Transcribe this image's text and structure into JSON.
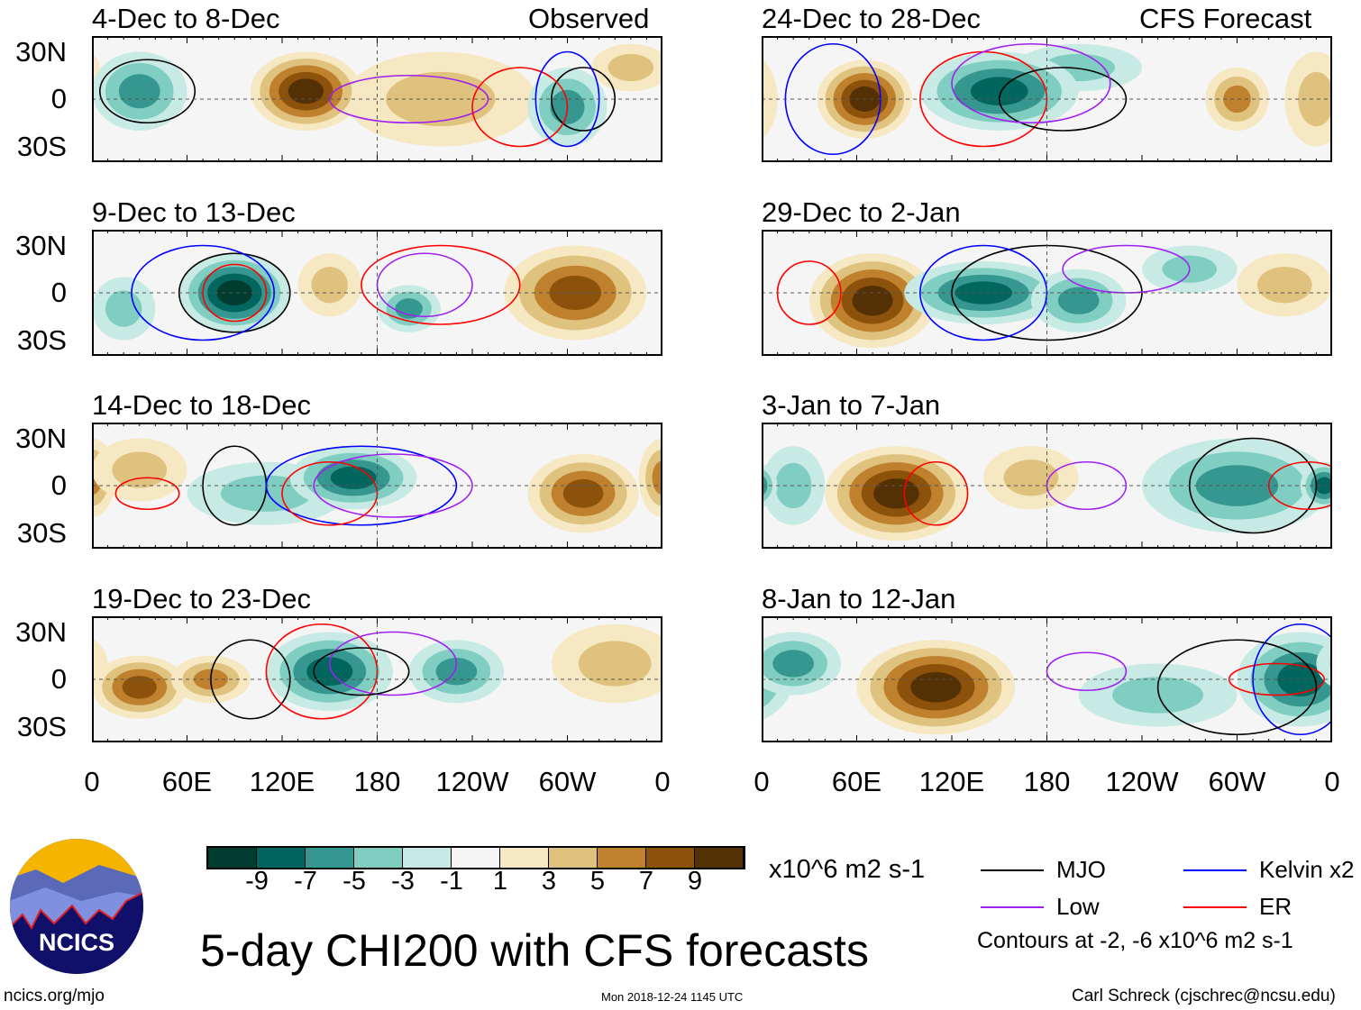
{
  "title": "5-day CHI200 with CFS forecasts",
  "units": "x10^6 m2 s-1",
  "observed_label": "Observed",
  "forecast_label": "CFS Forecast",
  "footer": {
    "left": "ncics.org/mjo",
    "center": "Mon 2018-12-24 1145 UTC",
    "right": "Carl Schreck (cjschrec@ncsu.edu)"
  },
  "logo_text": "NCICS",
  "contour_note": "Contours at -2, -6 x10^6 m2 s-1",
  "legend": [
    {
      "label": "MJO",
      "color": "#000000"
    },
    {
      "label": "Kelvin x2",
      "color": "#0000ff"
    },
    {
      "label": "Low",
      "color": "#a020f0"
    },
    {
      "label": "ER",
      "color": "#ff0000"
    }
  ],
  "colorbar": {
    "colors": [
      "#003c30",
      "#01665e",
      "#35978f",
      "#80cdc1",
      "#c7eae5",
      "#f5f5f5",
      "#f6e8c3",
      "#dfc27d",
      "#bf812d",
      "#8c510a",
      "#543005"
    ],
    "labels": [
      "-9",
      "-7",
      "-5",
      "-3",
      "-1",
      "1",
      "3",
      "5",
      "7",
      "9"
    ]
  },
  "lat_labels": [
    "30N",
    "0",
    "30S"
  ],
  "lon_labels": [
    "0",
    "60E",
    "120E",
    "180",
    "120W",
    "60W",
    "0"
  ],
  "chart_data": {
    "type": "heatmap",
    "lon_range": [
      0,
      360
    ],
    "lat_range": [
      -40,
      40
    ],
    "panels": [
      {
        "title": "4-Dec to 8-Dec",
        "anomalies": [
          {
            "lon": 220,
            "lat": 0,
            "rx": 60,
            "ry": 30,
            "v": 3
          },
          {
            "lon": 340,
            "lat": 20,
            "rx": 25,
            "ry": 15,
            "v": 3
          },
          {
            "lon": 135,
            "lat": 5,
            "rx": 35,
            "ry": 25,
            "v": 9
          },
          {
            "lon": 30,
            "lat": 5,
            "rx": 30,
            "ry": 25,
            "v": -5
          },
          {
            "lon": 300,
            "lat": -5,
            "rx": 25,
            "ry": 25,
            "v": -5
          }
        ],
        "contours": [
          {
            "t": "MJO",
            "lon": 35,
            "lat": 5,
            "rx": 30,
            "ry": 20
          },
          {
            "t": "MJO",
            "lon": 310,
            "lat": 0,
            "rx": 20,
            "ry": 20
          },
          {
            "t": "Low",
            "lon": 200,
            "lat": 0,
            "rx": 50,
            "ry": 15
          },
          {
            "t": "ER",
            "lon": 270,
            "lat": -5,
            "rx": 30,
            "ry": 25
          },
          {
            "t": "Kelvin",
            "lon": 300,
            "lat": 0,
            "rx": 20,
            "ry": 30
          }
        ]
      },
      {
        "title": "9-Dec to 13-Dec",
        "anomalies": [
          {
            "lon": 305,
            "lat": 0,
            "rx": 45,
            "ry": 30,
            "v": 7
          },
          {
            "lon": 150,
            "lat": 5,
            "rx": 20,
            "ry": 20,
            "v": 3
          },
          {
            "lon": 90,
            "lat": 0,
            "rx": 35,
            "ry": 25,
            "v": -9
          },
          {
            "lon": 200,
            "lat": -10,
            "rx": 20,
            "ry": 15,
            "v": -5
          },
          {
            "lon": 20,
            "lat": -10,
            "rx": 20,
            "ry": 20,
            "v": -3
          }
        ],
        "contours": [
          {
            "t": "MJO",
            "lon": 90,
            "lat": 0,
            "rx": 35,
            "ry": 25
          },
          {
            "t": "ER",
            "lon": 90,
            "lat": 0,
            "rx": 20,
            "ry": 18
          },
          {
            "t": "Kelvin",
            "lon": 70,
            "lat": 0,
            "rx": 45,
            "ry": 30
          },
          {
            "t": "Low",
            "lon": 210,
            "lat": 5,
            "rx": 30,
            "ry": 20
          },
          {
            "t": "ER",
            "lon": 220,
            "lat": 5,
            "rx": 50,
            "ry": 25
          }
        ]
      },
      {
        "title": "14-Dec to 18-Dec",
        "anomalies": [
          {
            "lon": 310,
            "lat": -5,
            "rx": 35,
            "ry": 25,
            "v": 7
          },
          {
            "lon": 0,
            "lat": 5,
            "rx": 15,
            "ry": 25,
            "v": 5
          },
          {
            "lon": 30,
            "lat": 10,
            "rx": 30,
            "ry": 20,
            "v": 3
          },
          {
            "lon": 110,
            "lat": -5,
            "rx": 50,
            "ry": 20,
            "v": -3
          },
          {
            "lon": 165,
            "lat": 5,
            "rx": 40,
            "ry": 20,
            "v": -7
          }
        ],
        "contours": [
          {
            "t": "MJO",
            "lon": 90,
            "lat": 0,
            "rx": 20,
            "ry": 25
          },
          {
            "t": "Kelvin",
            "lon": 170,
            "lat": 0,
            "rx": 60,
            "ry": 25
          },
          {
            "t": "Low",
            "lon": 190,
            "lat": 0,
            "rx": 50,
            "ry": 20
          },
          {
            "t": "ER",
            "lon": 35,
            "lat": -5,
            "rx": 20,
            "ry": 10
          },
          {
            "t": "ER",
            "lon": 150,
            "lat": -5,
            "rx": 30,
            "ry": 20
          }
        ]
      },
      {
        "title": "19-Dec to 23-Dec",
        "anomalies": [
          {
            "lon": 330,
            "lat": 10,
            "rx": 40,
            "ry": 25,
            "v": 3
          },
          {
            "lon": 30,
            "lat": -5,
            "rx": 30,
            "ry": 20,
            "v": 7
          },
          {
            "lon": 75,
            "lat": 0,
            "rx": 25,
            "ry": 15,
            "v": 5
          },
          {
            "lon": 150,
            "lat": 5,
            "rx": 40,
            "ry": 25,
            "v": -7
          },
          {
            "lon": 230,
            "lat": 5,
            "rx": 30,
            "ry": 20,
            "v": -5
          }
        ],
        "contours": [
          {
            "t": "MJO",
            "lon": 100,
            "lat": 0,
            "rx": 25,
            "ry": 25
          },
          {
            "t": "ER",
            "lon": 145,
            "lat": 5,
            "rx": 35,
            "ry": 30
          },
          {
            "t": "Low",
            "lon": 190,
            "lat": 10,
            "rx": 40,
            "ry": 20
          },
          {
            "t": "MJO",
            "lon": 170,
            "lat": 5,
            "rx": 30,
            "ry": 15
          }
        ]
      },
      {
        "title": "24-Dec to 28-Dec",
        "anomalies": [
          {
            "lon": 350,
            "lat": 0,
            "rx": 20,
            "ry": 30,
            "v": 3
          },
          {
            "lon": 65,
            "lat": 0,
            "rx": 30,
            "ry": 25,
            "v": 9
          },
          {
            "lon": 200,
            "lat": 20,
            "rx": 40,
            "ry": 15,
            "v": -3
          },
          {
            "lon": 150,
            "lat": 5,
            "rx": 50,
            "ry": 25,
            "v": -7
          },
          {
            "lon": 300,
            "lat": 0,
            "rx": 20,
            "ry": 20,
            "v": 5
          }
        ],
        "contours": [
          {
            "t": "ER",
            "lon": 140,
            "lat": 0,
            "rx": 40,
            "ry": 30
          },
          {
            "t": "MJO",
            "lon": 190,
            "lat": 0,
            "rx": 40,
            "ry": 20
          },
          {
            "t": "Low",
            "lon": 170,
            "lat": 10,
            "rx": 50,
            "ry": 25
          },
          {
            "t": "Kelvin",
            "lon": 45,
            "lat": 0,
            "rx": 30,
            "ry": 35
          }
        ]
      },
      {
        "title": "29-Dec to 2-Jan",
        "anomalies": [
          {
            "lon": 330,
            "lat": 5,
            "rx": 30,
            "ry": 20,
            "v": 3
          },
          {
            "lon": 270,
            "lat": 15,
            "rx": 30,
            "ry": 15,
            "v": -3
          },
          {
            "lon": 70,
            "lat": -5,
            "rx": 40,
            "ry": 30,
            "v": 9
          },
          {
            "lon": 140,
            "lat": 0,
            "rx": 50,
            "ry": 20,
            "v": -7
          },
          {
            "lon": 200,
            "lat": -5,
            "rx": 30,
            "ry": 20,
            "v": -5
          }
        ],
        "contours": [
          {
            "t": "MJO",
            "lon": 180,
            "lat": 0,
            "rx": 60,
            "ry": 30
          },
          {
            "t": "ER",
            "lon": 30,
            "lat": 0,
            "rx": 20,
            "ry": 20
          },
          {
            "t": "Low",
            "lon": 230,
            "lat": 15,
            "rx": 40,
            "ry": 15
          },
          {
            "t": "Kelvin",
            "lon": 140,
            "lat": 0,
            "rx": 40,
            "ry": 30
          }
        ]
      },
      {
        "title": "3-Jan to 7-Jan",
        "anomalies": [
          {
            "lon": 170,
            "lat": 5,
            "rx": 30,
            "ry": 20,
            "v": 3
          },
          {
            "lon": 300,
            "lat": 0,
            "rx": 60,
            "ry": 30,
            "v": -5
          },
          {
            "lon": 20,
            "lat": 0,
            "rx": 20,
            "ry": 25,
            "v": -3
          },
          {
            "lon": 85,
            "lat": -5,
            "rx": 45,
            "ry": 30,
            "v": 9
          },
          {
            "lon": 355,
            "lat": 0,
            "rx": 15,
            "ry": 15,
            "v": -7
          }
        ],
        "contours": [
          {
            "t": "ER",
            "lon": 110,
            "lat": -5,
            "rx": 20,
            "ry": 20
          },
          {
            "t": "Low",
            "lon": 205,
            "lat": 0,
            "rx": 25,
            "ry": 15
          },
          {
            "t": "MJO",
            "lon": 310,
            "lat": 0,
            "rx": 40,
            "ry": 30
          },
          {
            "t": "ER",
            "lon": 345,
            "lat": 0,
            "rx": 25,
            "ry": 15
          }
        ]
      },
      {
        "title": "8-Jan to 12-Jan",
        "anomalies": [
          {
            "lon": 250,
            "lat": -10,
            "rx": 50,
            "ry": 20,
            "v": -3
          },
          {
            "lon": 110,
            "lat": -5,
            "rx": 50,
            "ry": 30,
            "v": 9
          },
          {
            "lon": 340,
            "lat": 0,
            "rx": 40,
            "ry": 30,
            "v": -7
          },
          {
            "lon": 20,
            "lat": 10,
            "rx": 30,
            "ry": 20,
            "v": -5
          }
        ],
        "contours": [
          {
            "t": "Low",
            "lon": 205,
            "lat": 5,
            "rx": 25,
            "ry": 12
          },
          {
            "t": "ER",
            "lon": 325,
            "lat": 0,
            "rx": 30,
            "ry": 10
          },
          {
            "t": "Kelvin",
            "lon": 340,
            "lat": 0,
            "rx": 30,
            "ry": 35
          },
          {
            "t": "MJO",
            "lon": 300,
            "lat": -5,
            "rx": 50,
            "ry": 30
          }
        ]
      }
    ]
  }
}
